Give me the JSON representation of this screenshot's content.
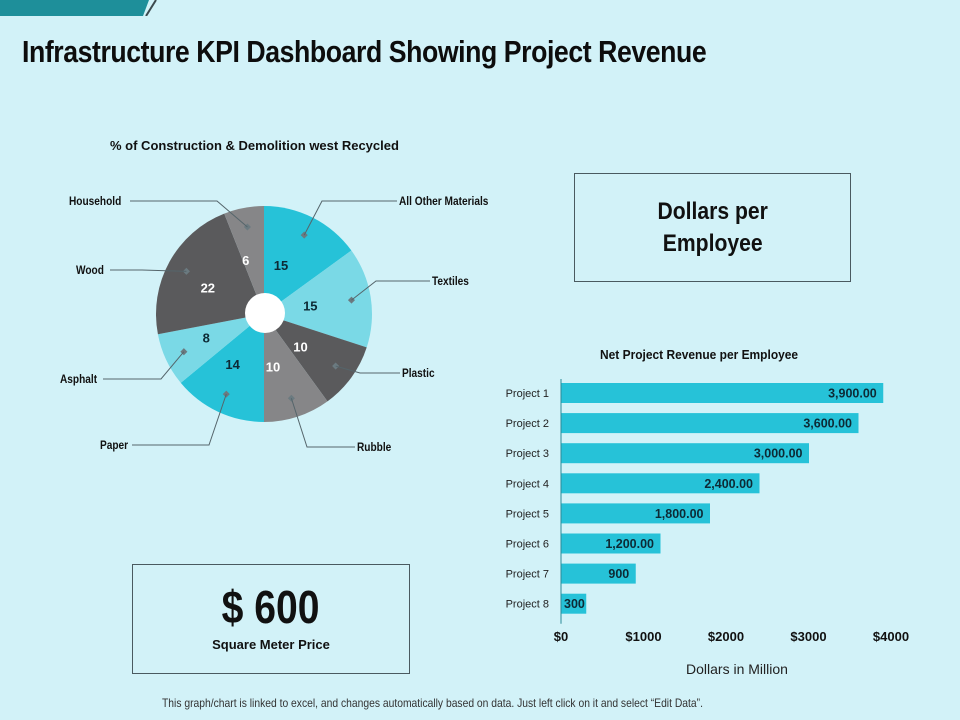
{
  "header": {
    "title": "Infrastructure KPI Dashboard Showing Project Revenue"
  },
  "colors": {
    "background": "#d2f2f8",
    "banner": "#1e8f9a",
    "cyan": "#26c2d8",
    "light_cyan": "#7ad9e6",
    "dark_gray": "#5a5a5c",
    "mid_gray": "#868688",
    "bar": "#26c2d8",
    "leader": "#55656b"
  },
  "kpi_cards": {
    "dollars_per_employee": {
      "line1": "Dollars per",
      "line2": "Employee"
    },
    "square_meter_price": {
      "value": "$ 600",
      "label": "Square Meter Price"
    }
  },
  "footer": {
    "note": "This graph/chart is linked to excel, and changes automatically based on data. Just left click on it and select “Edit Data”."
  },
  "chart_data": [
    {
      "type": "pie",
      "title": "% of Construction & Demolition west Recycled",
      "style": "donut",
      "start": "top",
      "direction": "clockwise",
      "slices": [
        {
          "label": "All Other Materials",
          "value": 15,
          "color": "#26c2d8",
          "label_color": "#0d2a35"
        },
        {
          "label": "Textiles",
          "value": 15,
          "color": "#7ad9e6",
          "label_color": "#0d2a35"
        },
        {
          "label": "Plastic",
          "value": 10,
          "color": "#5a5a5c",
          "label_color": "#ffffff"
        },
        {
          "label": "Rubble",
          "value": 10,
          "color": "#868688",
          "label_color": "#ffffff"
        },
        {
          "label": "Paper",
          "value": 14,
          "color": "#26c2d8",
          "label_color": "#0d2a35"
        },
        {
          "label": "Asphalt",
          "value": 8,
          "color": "#7ad9e6",
          "label_color": "#0d2a35"
        },
        {
          "label": "Wood",
          "value": 22,
          "color": "#5a5a5c",
          "label_color": "#ffffff"
        },
        {
          "label": "Household",
          "value": 6,
          "color": "#868688",
          "label_color": "#ffffff"
        }
      ],
      "legend": "leader-line labels"
    },
    {
      "type": "bar",
      "orientation": "horizontal",
      "title": "Net Project Revenue per Employee",
      "categories": [
        "Project 1",
        "Project 2",
        "Project 3",
        "Project 4",
        "Project 5",
        "Project 6",
        "Project 7",
        "Project 8"
      ],
      "values": [
        3900,
        3600,
        3000,
        2400,
        1800,
        1200,
        900,
        300
      ],
      "data_labels": [
        "3,900.00",
        "3,600.00",
        "3,000.00",
        "2,400.00",
        "1,800.00",
        "1,200.00",
        "900",
        "300"
      ],
      "xlabel": "Dollars in Million",
      "ylabel": "",
      "xlim": [
        0,
        4000
      ],
      "xticks": [
        0,
        1000,
        2000,
        3000,
        4000
      ],
      "xtick_labels": [
        "$0",
        "$1000",
        "$2000",
        "$3000",
        "$4000"
      ],
      "grid": false,
      "legend": "none"
    }
  ]
}
